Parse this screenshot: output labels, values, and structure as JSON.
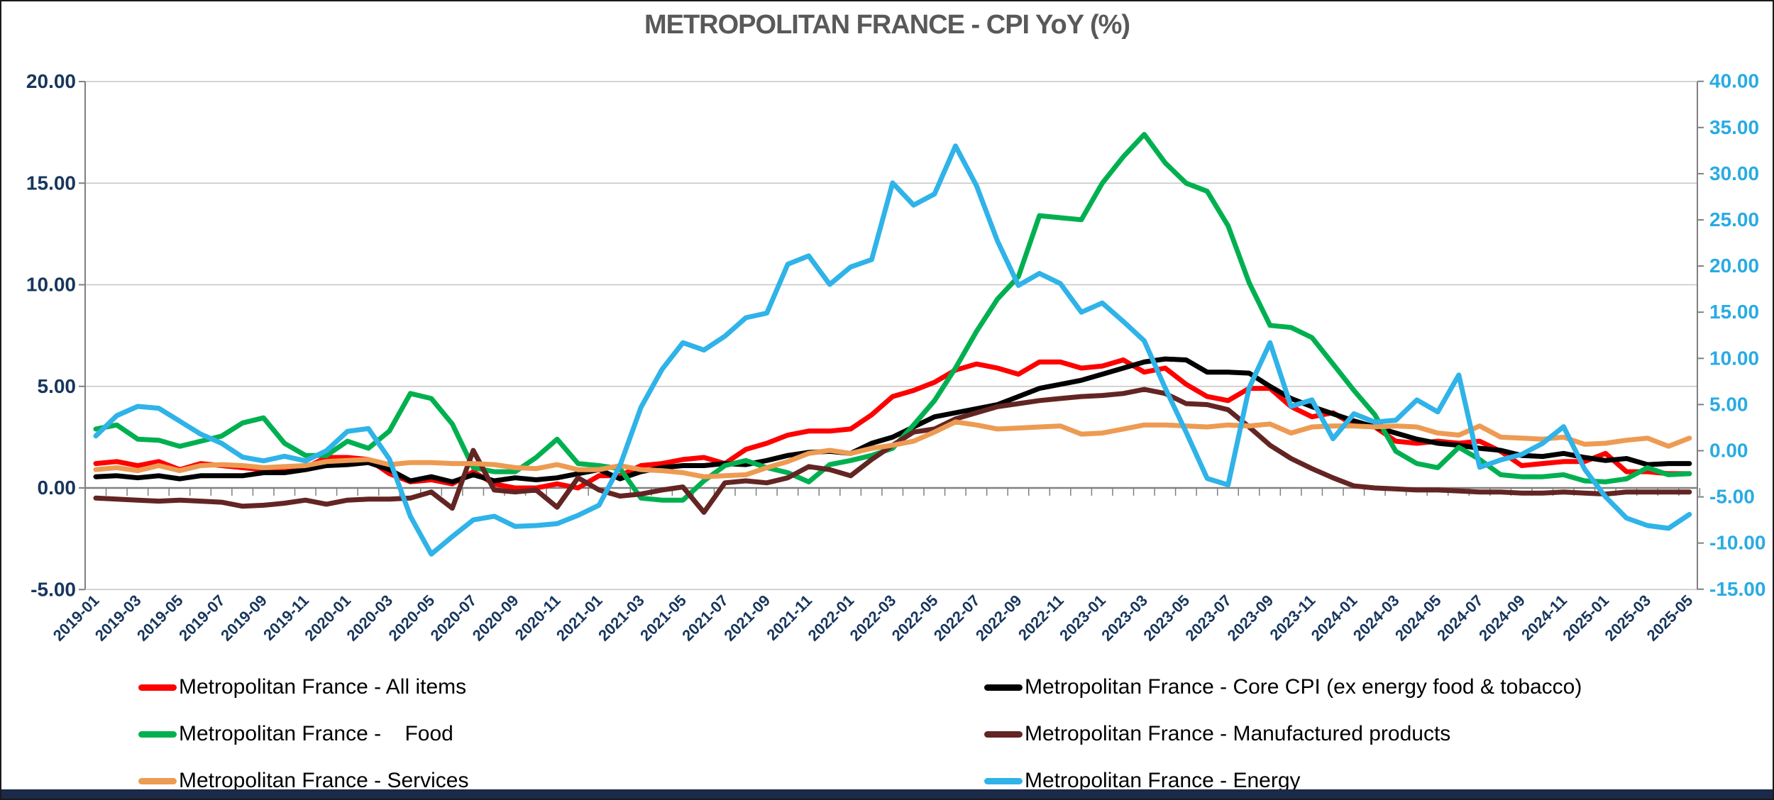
{
  "title": "METROPOLITAN FRANCE - CPI  YoY (%)",
  "colors": {
    "all_items": "#ff0000",
    "core": "#000000",
    "food": "#00b050",
    "manufactured": "#632523",
    "services": "#ed9b53",
    "energy": "#2fb3e8",
    "left_axis_text": "#17365d",
    "right_axis_text": "#29abe2",
    "x_axis_text": "#17365d",
    "gridline": "#c6c6c6",
    "axis_line": "#808080",
    "title_text": "#595959"
  },
  "chart_data": {
    "type": "line",
    "title": "METROPOLITAN FRANCE - CPI  YoY (%)",
    "xlabel": "",
    "ylabel_left": "",
    "ylabel_right": "",
    "grid": true,
    "legend_position": "bottom",
    "left_axis": {
      "min": -5,
      "max": 20,
      "step": 5,
      "tick_labels": [
        "20.00",
        "15.00",
        "10.00",
        "5.00",
        "0.00",
        "-5.00"
      ]
    },
    "right_axis": {
      "min": -15,
      "max": 40,
      "step": 5,
      "tick_labels": [
        "40.00",
        "35.00",
        "30.00",
        "25.00",
        "20.00",
        "15.00",
        "10.00",
        "5.00",
        "0.00",
        "-5.00",
        "-10.00",
        "-15.00"
      ]
    },
    "x": [
      "2019-01",
      "2019-02",
      "2019-03",
      "2019-04",
      "2019-05",
      "2019-06",
      "2019-07",
      "2019-08",
      "2019-09",
      "2019-10",
      "2019-11",
      "2019-12",
      "2020-01",
      "2020-02",
      "2020-03",
      "2020-04",
      "2020-05",
      "2020-06",
      "2020-07",
      "2020-08",
      "2020-09",
      "2020-10",
      "2020-11",
      "2020-12",
      "2021-01",
      "2021-02",
      "2021-03",
      "2021-04",
      "2021-05",
      "2021-06",
      "2021-07",
      "2021-08",
      "2021-09",
      "2021-10",
      "2021-11",
      "2021-12",
      "2022-01",
      "2022-02",
      "2022-03",
      "2022-04",
      "2022-05",
      "2022-06",
      "2022-07",
      "2022-08",
      "2022-09",
      "2022-10",
      "2022-11",
      "2022-12",
      "2023-01",
      "2023-02",
      "2023-03",
      "2023-04",
      "2023-05",
      "2023-06",
      "2023-07",
      "2023-08",
      "2023-09",
      "2023-10",
      "2023-11",
      "2023-12",
      "2024-01",
      "2024-02",
      "2024-03",
      "2024-04",
      "2024-05",
      "2024-06",
      "2024-07",
      "2024-08",
      "2024-09",
      "2024-10",
      "2024-11",
      "2024-12",
      "2025-01",
      "2025-02",
      "2025-03",
      "2025-04",
      "2025-05"
    ],
    "x_label_every": 2,
    "series": [
      {
        "name": "Metropolitan France - All items",
        "axis": "left",
        "color": "#ff0000",
        "values": [
          1.2,
          1.3,
          1.1,
          1.3,
          0.9,
          1.2,
          1.1,
          1.0,
          0.9,
          0.8,
          1.0,
          1.5,
          1.5,
          1.4,
          0.7,
          0.3,
          0.4,
          0.2,
          0.8,
          0.2,
          0.0,
          0.0,
          0.2,
          0.0,
          0.6,
          0.6,
          1.1,
          1.2,
          1.4,
          1.5,
          1.2,
          1.9,
          2.2,
          2.6,
          2.8,
          2.8,
          2.9,
          3.6,
          4.5,
          4.8,
          5.2,
          5.8,
          6.1,
          5.9,
          5.6,
          6.2,
          6.2,
          5.9,
          6.0,
          6.3,
          5.7,
          5.9,
          5.1,
          4.5,
          4.3,
          4.9,
          4.9,
          4.0,
          3.5,
          3.7,
          3.1,
          3.0,
          2.3,
          2.2,
          2.3,
          2.2,
          2.3,
          1.8,
          1.1,
          1.2,
          1.3,
          1.3,
          1.7,
          0.8,
          0.8,
          0.7,
          0.7
        ]
      },
      {
        "name": "Metropolitan France - Core CPI (ex energy food & tobacco)",
        "axis": "left",
        "color": "#000000",
        "values": [
          0.55,
          0.6,
          0.5,
          0.6,
          0.45,
          0.6,
          0.6,
          0.6,
          0.75,
          0.75,
          0.9,
          1.1,
          1.15,
          1.25,
          0.9,
          0.35,
          0.55,
          0.3,
          0.65,
          0.35,
          0.5,
          0.4,
          0.5,
          0.7,
          0.9,
          0.45,
          0.8,
          1.0,
          1.1,
          1.1,
          1.2,
          1.15,
          1.35,
          1.6,
          1.75,
          1.8,
          1.7,
          2.2,
          2.5,
          3.0,
          3.5,
          3.7,
          3.9,
          4.1,
          4.5,
          4.9,
          5.1,
          5.3,
          5.6,
          5.9,
          6.2,
          6.35,
          6.3,
          5.7,
          5.7,
          5.65,
          5.0,
          4.4,
          4.0,
          3.65,
          3.3,
          3.0,
          2.7,
          2.4,
          2.2,
          2.1,
          1.95,
          1.85,
          1.6,
          1.55,
          1.7,
          1.5,
          1.35,
          1.45,
          1.15,
          1.2,
          1.2
        ]
      },
      {
        "name": "Metropolitan France -    Food",
        "axis": "left",
        "color": "#00b050",
        "values": [
          2.9,
          3.1,
          2.4,
          2.35,
          2.05,
          2.3,
          2.55,
          3.2,
          3.45,
          2.2,
          1.6,
          1.6,
          2.3,
          1.95,
          2.8,
          4.65,
          4.4,
          3.15,
          1.0,
          0.8,
          0.8,
          1.5,
          2.4,
          1.2,
          1.1,
          0.95,
          -0.5,
          -0.6,
          -0.6,
          0.35,
          1.1,
          1.35,
          1.0,
          0.75,
          0.3,
          1.15,
          1.35,
          1.6,
          1.95,
          3.1,
          4.3,
          5.9,
          7.7,
          9.3,
          10.4,
          13.4,
          13.3,
          13.2,
          15.0,
          16.3,
          17.4,
          16.0,
          15.0,
          14.6,
          12.9,
          10.1,
          8.0,
          7.9,
          7.4,
          6.1,
          4.8,
          3.6,
          1.8,
          1.2,
          1.0,
          2.0,
          1.4,
          0.65,
          0.55,
          0.55,
          0.65,
          0.35,
          0.3,
          0.45,
          1.0,
          0.65,
          0.7
        ]
      },
      {
        "name": "Metropolitan France - Manufactured products",
        "axis": "left",
        "color": "#632523",
        "values": [
          -0.5,
          -0.55,
          -0.6,
          -0.65,
          -0.6,
          -0.65,
          -0.7,
          -0.9,
          -0.85,
          -0.75,
          -0.6,
          -0.8,
          -0.6,
          -0.55,
          -0.55,
          -0.5,
          -0.2,
          -1.0,
          1.85,
          -0.1,
          -0.2,
          -0.1,
          -0.95,
          0.5,
          -0.1,
          -0.4,
          -0.3,
          -0.1,
          0.05,
          -1.2,
          0.25,
          0.35,
          0.25,
          0.5,
          1.05,
          0.9,
          0.6,
          1.4,
          2.1,
          2.75,
          2.9,
          3.4,
          3.7,
          4.0,
          4.15,
          4.3,
          4.4,
          4.5,
          4.55,
          4.65,
          4.85,
          4.65,
          4.15,
          4.1,
          3.85,
          3.0,
          2.1,
          1.45,
          0.95,
          0.5,
          0.1,
          0.0,
          -0.05,
          -0.1,
          -0.1,
          -0.15,
          -0.2,
          -0.2,
          -0.25,
          -0.25,
          -0.2,
          -0.25,
          -0.3,
          -0.2,
          -0.2,
          -0.2,
          -0.2
        ]
      },
      {
        "name": "Metropolitan France - Services",
        "axis": "left",
        "color": "#ed9b53",
        "values": [
          0.9,
          1.0,
          0.85,
          1.1,
          0.85,
          1.1,
          1.15,
          1.1,
          1.0,
          1.05,
          1.1,
          1.3,
          1.35,
          1.4,
          1.15,
          1.25,
          1.25,
          1.2,
          1.2,
          1.15,
          1.0,
          0.95,
          1.15,
          0.9,
          0.9,
          1.1,
          0.9,
          0.85,
          0.75,
          0.55,
          0.6,
          0.65,
          1.0,
          1.3,
          1.7,
          1.85,
          1.7,
          1.95,
          2.1,
          2.3,
          2.75,
          3.25,
          3.1,
          2.9,
          2.95,
          3.0,
          3.05,
          2.65,
          2.7,
          2.9,
          3.1,
          3.1,
          3.05,
          3.0,
          3.1,
          3.05,
          3.15,
          2.7,
          3.0,
          3.05,
          3.05,
          3.0,
          3.05,
          3.0,
          2.7,
          2.6,
          3.05,
          2.5,
          2.45,
          2.4,
          2.5,
          2.15,
          2.2,
          2.35,
          2.45,
          2.05,
          2.45
        ]
      },
      {
        "name": "Metropolitan France - Energy",
        "axis": "right",
        "color": "#2fb3e8",
        "values": [
          1.6,
          3.8,
          4.8,
          4.6,
          3.2,
          1.8,
          0.8,
          -0.7,
          -1.1,
          -0.6,
          -1.1,
          0.0,
          2.1,
          2.4,
          -0.9,
          -7.1,
          -11.2,
          -9.3,
          -7.5,
          -7.1,
          -8.2,
          -8.1,
          -7.9,
          -7.0,
          -5.9,
          -1.6,
          4.7,
          8.8,
          11.7,
          10.9,
          12.4,
          14.4,
          14.9,
          20.2,
          21.1,
          18.0,
          19.9,
          20.7,
          29.0,
          26.6,
          27.8,
          33.0,
          28.7,
          22.7,
          17.9,
          19.2,
          18.1,
          15.0,
          16.0,
          14.0,
          11.9,
          6.8,
          2.0,
          -3.0,
          -3.7,
          6.8,
          11.7,
          4.8,
          5.5,
          1.3,
          4.0,
          3.1,
          3.3,
          5.5,
          4.2,
          8.2,
          -1.8,
          -1.0,
          -0.4,
          0.8,
          2.6,
          -2.0,
          -5.0,
          -7.3,
          -8.1,
          -8.4,
          -6.9
        ]
      }
    ],
    "legend": [
      {
        "label": "Metropolitan France - All items",
        "color": "#ff0000",
        "column": "left"
      },
      {
        "label": "Metropolitan France -    Food",
        "color": "#00b050",
        "column": "left"
      },
      {
        "label": "Metropolitan France - Services",
        "color": "#ed9b53",
        "column": "left"
      },
      {
        "label": "Metropolitan France - Core CPI (ex energy food & tobacco)",
        "color": "#000000",
        "column": "right"
      },
      {
        "label": "Metropolitan France - Manufactured products",
        "color": "#632523",
        "column": "right"
      },
      {
        "label": "Metropolitan France - Energy",
        "color": "#2fb3e8",
        "column": "right"
      }
    ]
  }
}
